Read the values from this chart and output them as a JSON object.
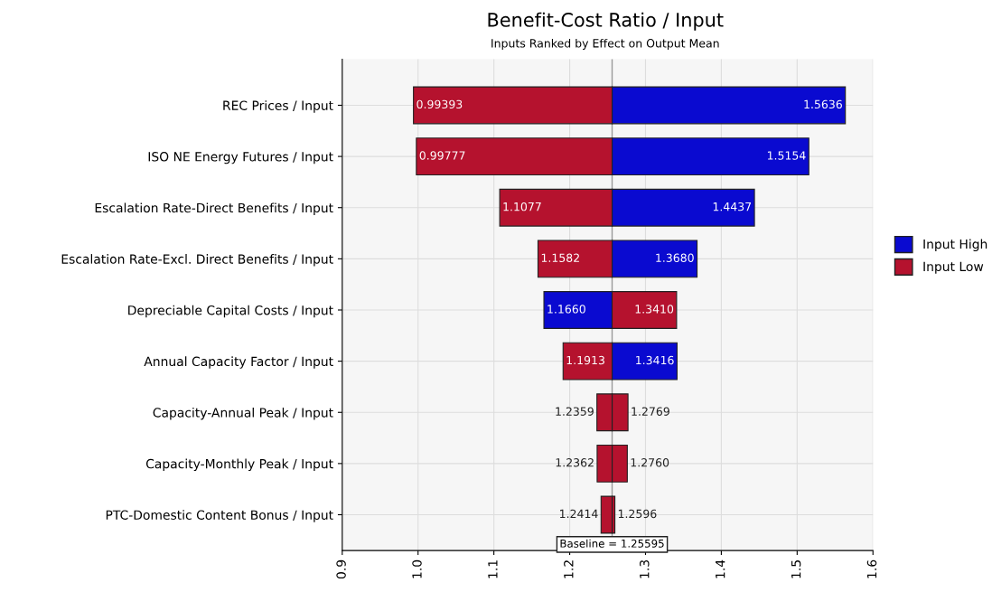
{
  "chart_data": {
    "type": "bar",
    "orientation": "horizontal",
    "title": "Benefit-Cost Ratio / Input",
    "subtitle": "Inputs Ranked by Effect on Output Mean",
    "categories": [
      "REC Prices / Input",
      "ISO NE Energy Futures / Input",
      "Escalation Rate-Direct Benefits / Input",
      "Escalation Rate-Excl. Direct Benefits / Input",
      "Depreciable Capital Costs / Input",
      "Annual Capacity Factor / Input",
      "Capacity-Annual Peak / Input",
      "Capacity-Monthly Peak / Input",
      "PTC-Domestic Content Bonus / Input"
    ],
    "series": [
      {
        "name": "Input High",
        "color": "#0a0ad0",
        "colors": [
          "#0a0ad0",
          "#0a0ad0",
          "#0a0ad0",
          "#0a0ad0",
          "#0a0ad0",
          "#0a0ad0",
          "#b5122e",
          "#b5122e",
          "#b5122e"
        ],
        "base": [
          1.25595,
          1.25595,
          1.25595,
          1.25595,
          1.25595,
          1.25595,
          1.25595,
          1.25595,
          1.25595
        ],
        "values": [
          0.30765,
          0.25945,
          0.18775,
          0.11205,
          -0.08995,
          0.08565,
          0.02095,
          0.02005,
          0.00365
        ]
      },
      {
        "name": "Input Low",
        "color": "#b5122e",
        "colors": [
          "#b5122e",
          "#b5122e",
          "#b5122e",
          "#b5122e",
          "#b5122e",
          "#b5122e",
          "#b5122e",
          "#b5122e",
          "#b5122e"
        ],
        "base": [
          1.25595,
          1.25595,
          1.25595,
          1.25595,
          1.25595,
          1.25595,
          1.25595,
          1.25595,
          1.25595
        ],
        "values": [
          -0.26202,
          -0.25818,
          -0.14825,
          -0.09775,
          0.08505,
          -0.06465,
          -0.02005,
          -0.01975,
          -0.01455
        ]
      }
    ],
    "annotations": [
      {
        "text": "1.5636",
        "x": 1.5636,
        "y": "REC Prices / Input"
      },
      {
        "text": "1.5154",
        "x": 1.5154,
        "y": "ISO NE Energy Futures / Input"
      },
      {
        "text": "1.4437",
        "x": 1.4437,
        "y": "Escalation Rate-Direct Benefits / Input"
      },
      {
        "text": "1.3680",
        "x": 1.368,
        "y": "Escalation Rate-Excl. Direct Benefits / Input"
      },
      {
        "text": "1.1660",
        "x": 1.166,
        "y": "Depreciable Capital Costs / Input"
      },
      {
        "text": "1.3416",
        "x": 1.3416,
        "y": "Annual Capacity Factor / Input"
      },
      {
        "text": "1.2769",
        "x": 1.2769,
        "y": "Capacity-Annual Peak / Input"
      },
      {
        "text": "1.2760",
        "x": 1.276,
        "y": "Capacity-Monthly Peak / Input"
      },
      {
        "text": "1.2596",
        "x": 1.2596,
        "y": "PTC-Domestic Content Bonus / Input"
      },
      {
        "text": "0.99393",
        "x": 0.99393,
        "y": "REC Prices / Input"
      },
      {
        "text": "0.99777",
        "x": 0.99777,
        "y": "ISO NE Energy Futures / Input"
      },
      {
        "text": "1.1077",
        "x": 1.1077,
        "y": "Escalation Rate-Direct Benefits / Input"
      },
      {
        "text": "1.1582",
        "x": 1.1582,
        "y": "Escalation Rate-Excl. Direct Benefits / Input"
      },
      {
        "text": "1.3410",
        "x": 1.341,
        "y": "Depreciable Capital Costs / Input"
      },
      {
        "text": "1.1913",
        "x": 1.1913,
        "y": "Annual Capacity Factor / Input"
      },
      {
        "text": "1.2359",
        "x": 1.2359,
        "y": "Capacity-Annual Peak / Input"
      },
      {
        "text": "1.2362",
        "x": 1.2362,
        "y": "Capacity-Monthly Peak / Input"
      },
      {
        "text": "1.2414",
        "x": 1.2414,
        "y": "PTC-Domestic Content Bonus / Input"
      }
    ],
    "xlim": [
      0.9,
      1.6
    ],
    "xticks": [
      0.9,
      {
        "value": 1.0,
        "label": "1.0"
      },
      1.1,
      1.2,
      1.3,
      1.4,
      1.5,
      1.6
    ],
    "ref_lines": [
      {
        "axis": "x",
        "value": 1.25595,
        "label": "Baseline = 1.25595",
        "color": "#999999"
      }
    ],
    "grid": true,
    "legend": "right"
  }
}
